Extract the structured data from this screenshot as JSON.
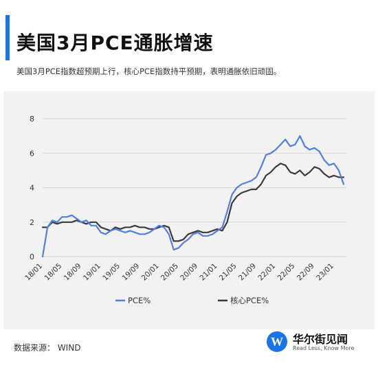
{
  "header": {
    "title": "美国3月PCE通胀增速",
    "subtitle": "美国3月PCE指数超预期上行，核心PCE指数持平预期，表明通胀依旧顽固。"
  },
  "footer": {
    "source": "数据来源： WIND",
    "logo_name": "华尔街见闻",
    "logo_slogan": "Read Less, Know More",
    "logo_mark": "W"
  },
  "colors": {
    "pce": "#4f7fe6",
    "core": "#3a3a3a",
    "accent": "#1a73e8"
  },
  "chart_data": {
    "type": "line",
    "title": "",
    "xlabel": "",
    "ylabel": "",
    "ylim": [
      0,
      8
    ],
    "yticks": [
      "0",
      "2",
      "4",
      "6",
      "8"
    ],
    "grid": true,
    "legend": "bottom",
    "x": [
      "18/01",
      "18/02",
      "18/03",
      "18/04",
      "18/05",
      "18/06",
      "18/07",
      "18/08",
      "18/09",
      "18/10",
      "18/11",
      "18/12",
      "19/01",
      "19/02",
      "19/03",
      "19/04",
      "19/05",
      "19/06",
      "19/07",
      "19/08",
      "19/09",
      "19/10",
      "19/11",
      "19/12",
      "20/01",
      "20/02",
      "20/03",
      "20/04",
      "20/05",
      "20/06",
      "20/07",
      "20/08",
      "20/09",
      "20/10",
      "20/11",
      "20/12",
      "21/01",
      "21/02",
      "21/03",
      "21/04",
      "21/05",
      "21/06",
      "21/07",
      "21/08",
      "21/09",
      "21/10",
      "21/11",
      "21/12",
      "22/01",
      "22/02",
      "22/03",
      "22/04",
      "22/05",
      "22/06",
      "22/07",
      "22/08",
      "22/09",
      "22/10",
      "22/11",
      "22/12",
      "23/01",
      "23/02",
      "23/03"
    ],
    "xtick_labels": [
      "18/01",
      "18/05",
      "18/09",
      "19/01",
      "19/05",
      "19/09",
      "20/01",
      "20/05",
      "20/09",
      "21/01",
      "21/05",
      "21/09",
      "22/01",
      "22/05",
      "22/09",
      "23/01"
    ],
    "series": [
      {
        "name": "PCE%",
        "values": [
          0.0,
          1.7,
          2.1,
          2.0,
          2.3,
          2.3,
          2.4,
          2.2,
          2.0,
          2.1,
          1.8,
          1.8,
          1.4,
          1.3,
          1.5,
          1.6,
          1.5,
          1.4,
          1.5,
          1.4,
          1.3,
          1.3,
          1.4,
          1.6,
          1.8,
          1.7,
          1.3,
          0.4,
          0.5,
          0.8,
          1.0,
          1.3,
          1.4,
          1.2,
          1.2,
          1.3,
          1.5,
          1.7,
          2.6,
          3.6,
          4.0,
          4.2,
          4.3,
          4.4,
          4.6,
          5.2,
          5.9,
          6.0,
          6.2,
          6.5,
          6.8,
          6.4,
          6.5,
          7.0,
          6.4,
          6.2,
          6.3,
          6.1,
          5.6,
          5.3,
          5.4,
          5.0,
          4.2
        ]
      },
      {
        "name": "核心PCE%",
        "values": [
          1.7,
          1.7,
          2.0,
          1.9,
          2.0,
          2.0,
          2.0,
          2.1,
          2.0,
          1.9,
          2.0,
          2.0,
          1.7,
          1.6,
          1.5,
          1.7,
          1.6,
          1.7,
          1.7,
          1.8,
          1.7,
          1.7,
          1.6,
          1.6,
          1.7,
          1.8,
          1.7,
          0.9,
          0.9,
          1.0,
          1.3,
          1.4,
          1.5,
          1.4,
          1.4,
          1.5,
          1.6,
          1.5,
          2.0,
          3.1,
          3.5,
          3.7,
          3.8,
          3.9,
          3.9,
          4.2,
          4.7,
          4.9,
          5.2,
          5.4,
          5.3,
          4.9,
          4.8,
          5.0,
          4.7,
          4.9,
          5.2,
          5.1,
          4.8,
          4.6,
          4.7,
          4.6,
          4.6
        ]
      }
    ]
  }
}
